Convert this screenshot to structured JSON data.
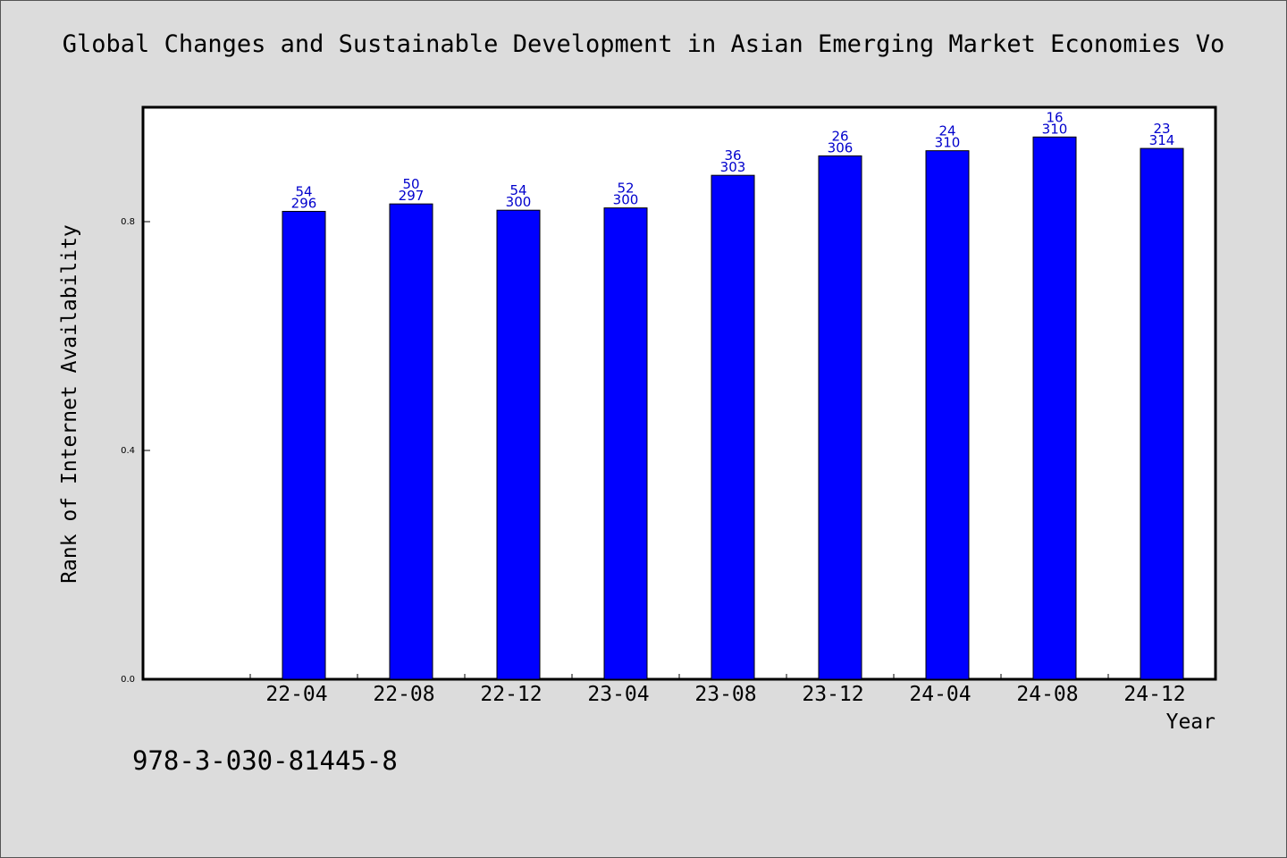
{
  "chart_data": {
    "type": "bar",
    "title": "Global Changes and Sustainable Development in Asian Emerging Market Economies Vo",
    "xlabel": "Year",
    "ylabel": "Rank of Internet Availability",
    "categories": [
      "22-04",
      "22-08",
      "22-12",
      "23-04",
      "23-08",
      "23-12",
      "24-04",
      "24-08",
      "24-12"
    ],
    "values": [
      0.818,
      0.831,
      0.82,
      0.824,
      0.881,
      0.915,
      0.924,
      0.948,
      0.928
    ],
    "bar_label_top": [
      "54",
      "50",
      "54",
      "52",
      "36",
      "26",
      "24",
      "16",
      "23"
    ],
    "bar_label_bottom": [
      "296",
      "297",
      "300",
      "300",
      "303",
      "306",
      "310",
      "310",
      "314"
    ],
    "yticks": [
      0.0,
      0.4,
      0.8
    ],
    "ytick_labels": [
      "0.0",
      "0.4",
      "0.8"
    ],
    "ylim": [
      0,
      1.0
    ],
    "grid": false,
    "legend": "none",
    "bar_color": "#0000ff",
    "label_color": "#0000cc"
  },
  "footer": {
    "isbn": "978-3-030-81445-8"
  }
}
